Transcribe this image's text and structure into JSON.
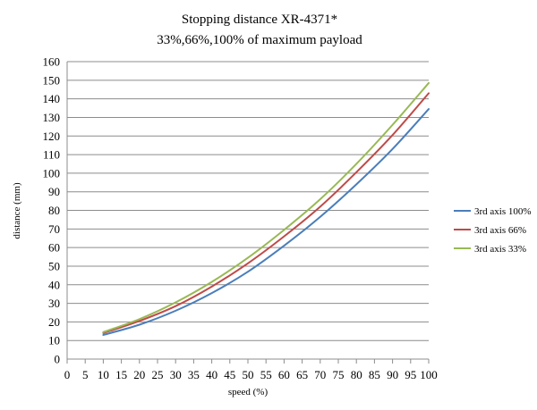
{
  "chart_data": {
    "type": "line",
    "title": "Stopping distance  XR-4371*",
    "subtitle": "33%,66%,100% of maximum payload",
    "xlabel": "speed (%)",
    "ylabel": "distance (mm)",
    "xlim": [
      0,
      100
    ],
    "ylim": [
      0,
      160
    ],
    "x_ticks": [
      0,
      5,
      10,
      15,
      20,
      25,
      30,
      35,
      40,
      45,
      50,
      55,
      60,
      65,
      70,
      75,
      80,
      85,
      90,
      95,
      100
    ],
    "y_ticks": [
      0,
      10,
      20,
      30,
      40,
      50,
      60,
      70,
      80,
      90,
      100,
      110,
      120,
      130,
      140,
      150,
      160
    ],
    "grid": "horizontal",
    "legend_position": "right",
    "x": [
      10,
      20,
      30,
      40,
      50,
      60,
      70,
      80,
      90,
      100
    ],
    "series": [
      {
        "name": "3rd axis 100%",
        "color": "#4a7ebb",
        "values": [
          13,
          18.5,
          26,
          35.5,
          47,
          61,
          76.5,
          94,
          113,
          134.5
        ]
      },
      {
        "name": "3rd axis 66%",
        "color": "#be4b48",
        "values": [
          14,
          20.5,
          28.5,
          39,
          51.5,
          66,
          82,
          100.5,
          120.5,
          143
        ]
      },
      {
        "name": "3rd axis 33%",
        "color": "#98b954",
        "values": [
          14.5,
          21.5,
          30.5,
          41.5,
          54.5,
          69.5,
          86,
          105,
          126,
          148.5
        ]
      }
    ]
  }
}
